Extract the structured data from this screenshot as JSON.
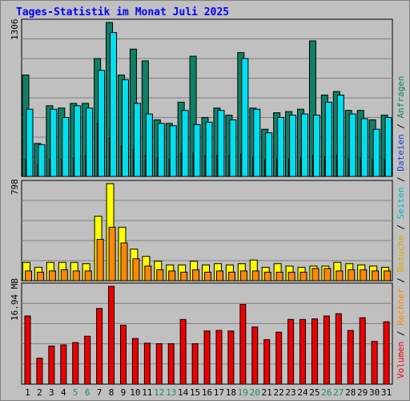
{
  "title": "Tages-Statistik im Monat Juli 2025",
  "colors": {
    "anfragen": "#0e8066",
    "dateien": "#1b3fd0",
    "seiten": "#00e0f0",
    "besuche": "#ffff00",
    "rechner": "#ff8800",
    "volumen": "#ee0000",
    "weekend_label": "#1e8a62",
    "grid": "#808080",
    "panel": "#c0c0c0"
  },
  "legend": [
    {
      "label": "Volumen",
      "color": "#ee0000"
    },
    {
      "label": "Rechner",
      "color": "#ff8800"
    },
    {
      "label": "Besuche",
      "color": "#ddaa00"
    },
    {
      "label": "Seiten",
      "color": "#00b8c8"
    },
    {
      "label": "Dateien",
      "color": "#1b3fd0"
    },
    {
      "label": "Anfragen",
      "color": "#0e8066"
    }
  ],
  "legend_sep": "/",
  "chart_data": [
    {
      "type": "bar",
      "panel": "top",
      "ymax_label": "1306",
      "ymax": 1306,
      "categories": [
        "1",
        "2",
        "3",
        "4",
        "5",
        "6",
        "7",
        "8",
        "9",
        "10",
        "11",
        "12",
        "13",
        "14",
        "15",
        "16",
        "17",
        "18",
        "19",
        "20",
        "21",
        "22",
        "23",
        "24",
        "25",
        "26",
        "27",
        "28",
        "29",
        "30",
        "31"
      ],
      "weekend_days": [
        "5",
        "6",
        "12",
        "13",
        "19",
        "20",
        "26",
        "27"
      ],
      "series": [
        {
          "name": "Anfragen",
          "values": [
            860,
            280,
            600,
            580,
            620,
            620,
            1000,
            1306,
            860,
            1080,
            980,
            480,
            450,
            630,
            1020,
            500,
            580,
            520,
            1050,
            580,
            400,
            540,
            550,
            570,
            1150,
            690,
            720,
            560,
            560,
            480,
            520
          ]
        },
        {
          "name": "Dateien",
          "values": [
            150,
            100,
            150,
            150,
            160,
            180,
            450,
            330,
            260,
            230,
            180,
            160,
            150,
            200,
            200,
            180,
            180,
            180,
            190,
            160,
            140,
            150,
            150,
            160,
            180,
            170,
            180,
            150,
            160,
            150,
            150
          ]
        },
        {
          "name": "Seiten",
          "values": [
            570,
            270,
            570,
            500,
            600,
            580,
            900,
            1220,
            820,
            620,
            530,
            450,
            430,
            560,
            440,
            460,
            560,
            480,
            1000,
            570,
            370,
            500,
            520,
            530,
            520,
            630,
            690,
            530,
            490,
            400,
            500
          ]
        }
      ]
    },
    {
      "type": "bar",
      "panel": "middle",
      "ymax_label": "798",
      "ymax": 798,
      "categories": [
        "1",
        "2",
        "3",
        "4",
        "5",
        "6",
        "7",
        "8",
        "9",
        "10",
        "11",
        "12",
        "13",
        "14",
        "15",
        "16",
        "17",
        "18",
        "19",
        "20",
        "21",
        "22",
        "23",
        "24",
        "25",
        "26",
        "27",
        "28",
        "29",
        "30",
        "31"
      ],
      "series": [
        {
          "name": "Besuche",
          "values": [
            150,
            110,
            150,
            150,
            150,
            140,
            530,
            798,
            440,
            260,
            200,
            160,
            130,
            130,
            160,
            130,
            140,
            130,
            140,
            170,
            110,
            140,
            120,
            110,
            120,
            120,
            150,
            140,
            130,
            120,
            110
          ]
        },
        {
          "name": "Rechner",
          "values": [
            80,
            70,
            80,
            90,
            80,
            80,
            340,
            440,
            310,
            180,
            120,
            90,
            80,
            70,
            90,
            70,
            80,
            70,
            80,
            80,
            70,
            70,
            70,
            70,
            100,
            100,
            80,
            90,
            90,
            80,
            80
          ]
        }
      ]
    },
    {
      "type": "bar",
      "panel": "bottom",
      "ymax_label": "16.94 MB",
      "ymax": 16.94,
      "categories": [
        "1",
        "2",
        "3",
        "4",
        "5",
        "6",
        "7",
        "8",
        "9",
        "10",
        "11",
        "12",
        "13",
        "14",
        "15",
        "16",
        "17",
        "18",
        "19",
        "20",
        "21",
        "22",
        "23",
        "24",
        "25",
        "26",
        "27",
        "28",
        "29",
        "30",
        "31"
      ],
      "series": [
        {
          "name": "Volumen",
          "values": [
            11.8,
            4.5,
            6.6,
            6.8,
            7.2,
            8.3,
            13.1,
            16.94,
            10.2,
            7.9,
            7.1,
            7.0,
            7.0,
            11.2,
            7.0,
            9.2,
            9.3,
            9.2,
            13.8,
            9.9,
            7.7,
            9.0,
            11.2,
            11.2,
            11.3,
            11.8,
            12.2,
            9.3,
            11.5,
            7.4,
            10.8
          ]
        }
      ]
    }
  ]
}
